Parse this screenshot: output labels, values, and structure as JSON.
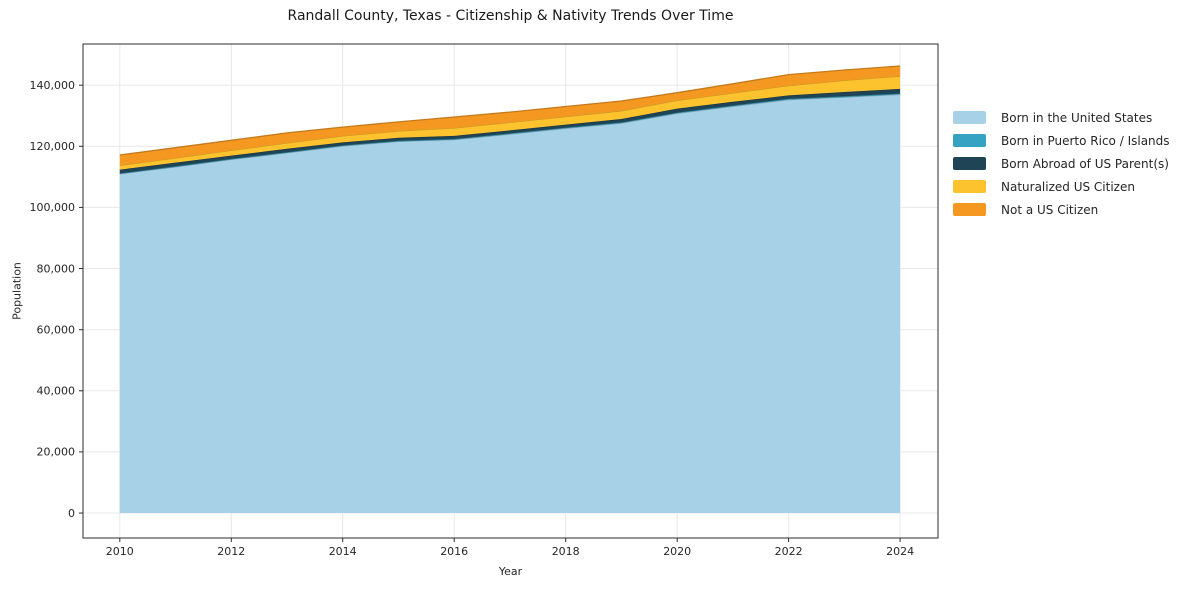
{
  "title": "Randall County, Texas - Citizenship & Nativity Trends Over Time",
  "colors": {
    "background": "#ffffff",
    "spine": "#2e2e2e",
    "grid": "#e8e8e8",
    "text": "#262626"
  },
  "chart_data": {
    "type": "area",
    "stacked": true,
    "title": "Randall County, Texas - Citizenship & Nativity Trends Over Time",
    "xlabel": "Year",
    "ylabel": "Population",
    "grid": true,
    "legend_position": "right-outside",
    "x": [
      2010,
      2011,
      2012,
      2013,
      2014,
      2015,
      2016,
      2017,
      2018,
      2019,
      2020,
      2021,
      2022,
      2023,
      2024
    ],
    "series": [
      {
        "name": "Born in the United States",
        "color": "#a7d1e6",
        "values": [
          111000,
          113300,
          115700,
          117900,
          120100,
          121600,
          122200,
          124000,
          125900,
          127600,
          130800,
          133100,
          135300,
          136100,
          137000
        ]
      },
      {
        "name": "Born in Puerto Rico / Islands",
        "color": "#36a2c1",
        "values": [
          150,
          160,
          170,
          180,
          190,
          200,
          200,
          210,
          220,
          230,
          240,
          250,
          260,
          270,
          280
        ]
      },
      {
        "name": "Born Abroad of US Parent(s)",
        "color": "#1f4455",
        "values": [
          1200,
          1200,
          1100,
          1100,
          1000,
          1000,
          1000,
          1000,
          1000,
          1100,
          1300,
          1200,
          1100,
          1400,
          1500
        ]
      },
      {
        "name": "Naturalized US Citizen",
        "color": "#fdc32f",
        "values": [
          1400,
          1500,
          1700,
          1900,
          2100,
          2200,
          2600,
          2600,
          2600,
          2700,
          2700,
          2900,
          3200,
          3800,
          4200
        ]
      },
      {
        "name": "Not a US Citizen",
        "color": "#f59822",
        "values": [
          3400,
          3400,
          3300,
          3300,
          2900,
          3000,
          3600,
          3400,
          3300,
          3200,
          2500,
          3000,
          3600,
          3400,
          3300
        ]
      }
    ],
    "xlim": [
      2009.34,
      2024.68
    ],
    "ylim": [
      -8180,
      153480
    ],
    "x_ticks": {
      "values": [
        2010,
        2012,
        2014,
        2016,
        2018,
        2020,
        2022,
        2024
      ],
      "labels": [
        "2010",
        "2012",
        "2014",
        "2016",
        "2018",
        "2020",
        "2022",
        "2024"
      ]
    },
    "y_ticks": {
      "values": [
        0,
        20000,
        40000,
        60000,
        80000,
        100000,
        120000,
        140000
      ],
      "labels": [
        "0",
        "20,000",
        "40,000",
        "60,000",
        "80,000",
        "100,000",
        "120,000",
        "140,000"
      ]
    }
  }
}
